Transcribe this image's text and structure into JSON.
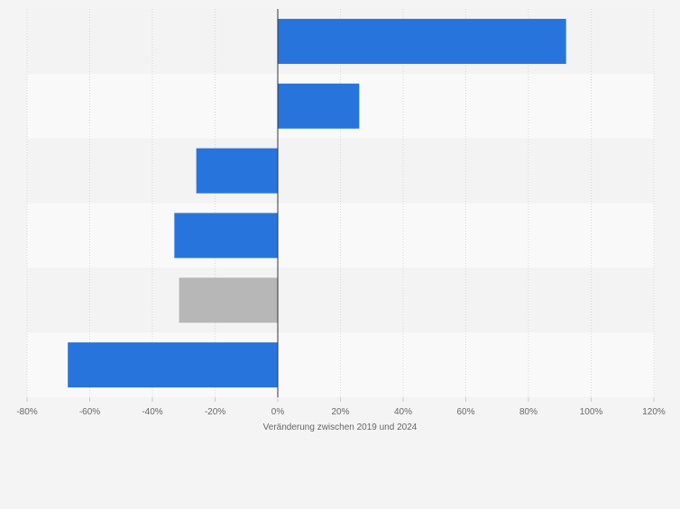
{
  "chart_data": {
    "type": "bar",
    "orientation": "horizontal",
    "xlabel": "Veränderung zwischen 2019 und 2024",
    "xlim": [
      -80,
      120
    ],
    "xticks": [
      -80,
      -60,
      -40,
      -20,
      0,
      20,
      40,
      60,
      80,
      100,
      120
    ],
    "tick_suffix": "%",
    "grid": true,
    "legend": "none",
    "colors": {
      "bar_primary": "#2775dc",
      "bar_highlight": "#b7b7b7",
      "band_dark": "#f3f3f3",
      "band_light": "#f9f9f9",
      "grid": "#d9d9d9",
      "zero_line": "#333333",
      "tick_text": "#666666",
      "axis_title": "#666666"
    },
    "values": [
      92,
      26,
      -26,
      -33,
      -31.5,
      -67
    ],
    "highlight_index": 4
  }
}
